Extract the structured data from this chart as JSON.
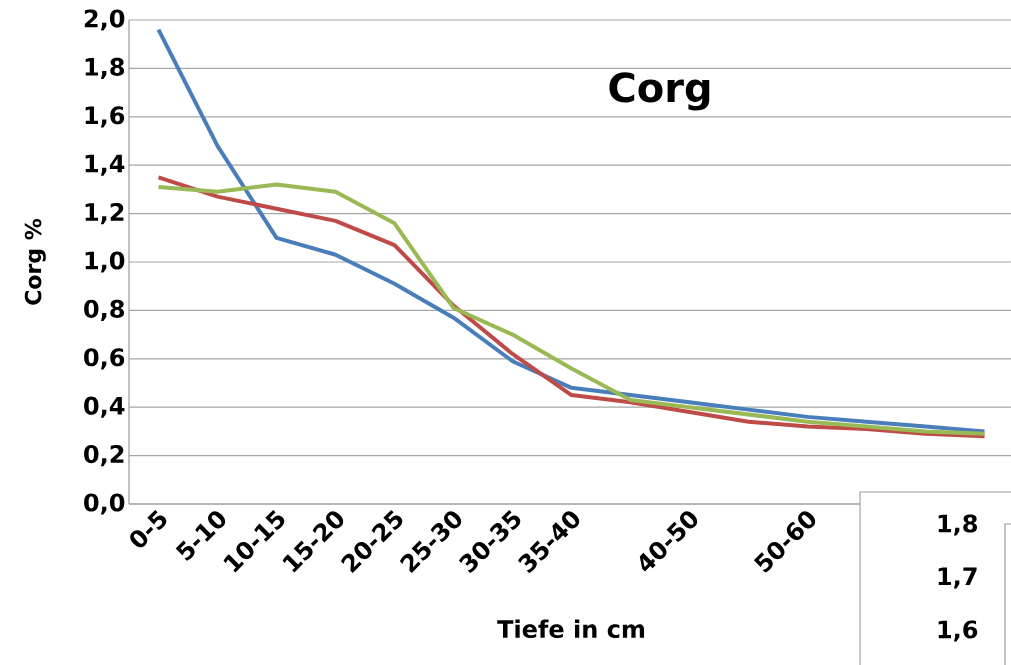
{
  "chart_data": [
    {
      "type": "line",
      "title": "Corg",
      "xlabel": "Tiefe in cm",
      "ylabel": "Corg %",
      "categories": [
        "0-5",
        "5-10",
        "10-15",
        "15-20",
        "20-25",
        "25-30",
        "30-35",
        "35-40",
        null,
        "40-50",
        null,
        "50-60",
        null,
        null,
        null
      ],
      "series": [
        {
          "color": "#4a7ebb",
          "values": [
            1.96,
            1.48,
            1.1,
            1.03,
            0.91,
            0.77,
            0.59,
            0.48,
            0.45,
            0.42,
            0.39,
            0.36,
            0.34,
            0.32,
            0.3
          ]
        },
        {
          "color": "#be4b48",
          "values": [
            1.35,
            1.27,
            1.22,
            1.17,
            1.07,
            0.82,
            0.62,
            0.45,
            0.42,
            0.38,
            0.34,
            0.32,
            0.31,
            0.29,
            0.28
          ]
        },
        {
          "color": "#98b954",
          "values": [
            1.31,
            1.29,
            1.32,
            1.29,
            1.16,
            0.81,
            0.7,
            0.56,
            0.43,
            0.4,
            0.37,
            0.34,
            0.32,
            0.3,
            0.29
          ]
        }
      ],
      "ylim": [
        0,
        2
      ],
      "yticks": [
        {
          "value": 0,
          "label": "0,0"
        },
        {
          "value": 0.2,
          "label": "0,2"
        },
        {
          "value": 0.4,
          "label": "0,4"
        },
        {
          "value": 0.6,
          "label": "0,6"
        },
        {
          "value": 0.8,
          "label": "0,8"
        },
        {
          "value": 1.0,
          "label": "1,0"
        },
        {
          "value": 1.2,
          "label": "1,2"
        },
        {
          "value": 1.4,
          "label": "1,4"
        },
        {
          "value": 1.6,
          "label": "1,6"
        },
        {
          "value": 1.8,
          "label": "1,8"
        },
        {
          "value": 2.0,
          "label": "2,0"
        }
      ],
      "grid": "y",
      "marker": "none",
      "line_style": "solid",
      "annotations": [
        "1,8",
        "1,7",
        "1,6"
      ]
    }
  ]
}
